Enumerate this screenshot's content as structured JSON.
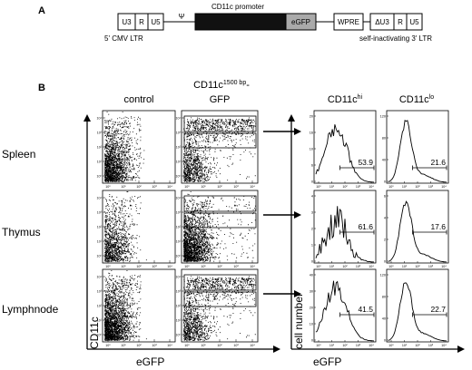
{
  "panel_a": {
    "letter": "A",
    "promoter_label": "CD11c promoter",
    "boxes": {
      "u3": "U3",
      "r1": "R",
      "u5a": "U5",
      "psi": "Ψ",
      "egfp": "eGFP",
      "wpre": "WPRE",
      "du3": "ΔU3",
      "r2": "R",
      "u5b": "U5"
    },
    "ltr5": "5' CMV LTR",
    "ltr3": "self-inactivating 3' LTR"
  },
  "panel_b": {
    "letter": "B",
    "col_control": "control",
    "col_transgenic_main": "CD11c",
    "col_transgenic_sup": "1500 bp",
    "col_transgenic_dash": "-",
    "col_transgenic_line2": "GFP",
    "col_hi_main": "CD11c",
    "col_hi_sup": "hi",
    "col_lo_main": "CD11c",
    "col_lo_sup": "lo",
    "rows": [
      "Spleen",
      "Thymus",
      "Lymphnode"
    ],
    "y_axis_dot": "CD11c",
    "x_axis_dot": "eGFP",
    "y_axis_hist": "cell number",
    "x_axis_hist": "eGFP",
    "percentages": {
      "spleen": {
        "hi": "53.9",
        "lo": "21.6"
      },
      "thymus": {
        "hi": "61.6",
        "lo": "17.6"
      },
      "lymphnode": {
        "hi": "41.5",
        "lo": "22.7"
      }
    },
    "y_ticks_hist_spleen": [
      "0",
      "6",
      "10",
      "16",
      "20"
    ],
    "y_ticks_hist_thymus": [
      "0",
      "1",
      "2",
      "3",
      "4"
    ],
    "y_ticks_hist_lymph": [
      "0",
      "10",
      "20",
      "30",
      "40"
    ],
    "y_ticks_hist_lo_spleen": [
      "0",
      "40",
      "80",
      "120"
    ],
    "y_ticks_hist_lo_thymus": [
      "0",
      "2",
      "4",
      "6"
    ],
    "y_ticks_hist_lo_lymph": [
      "0",
      "40",
      "80",
      "120"
    ],
    "dot_y_ticks": [
      "10⁴",
      "10³",
      "10²",
      "10¹",
      "10⁰"
    ],
    "x_ticks": [
      "10⁰",
      "10¹",
      "10²",
      "10³",
      "10⁴"
    ]
  }
}
